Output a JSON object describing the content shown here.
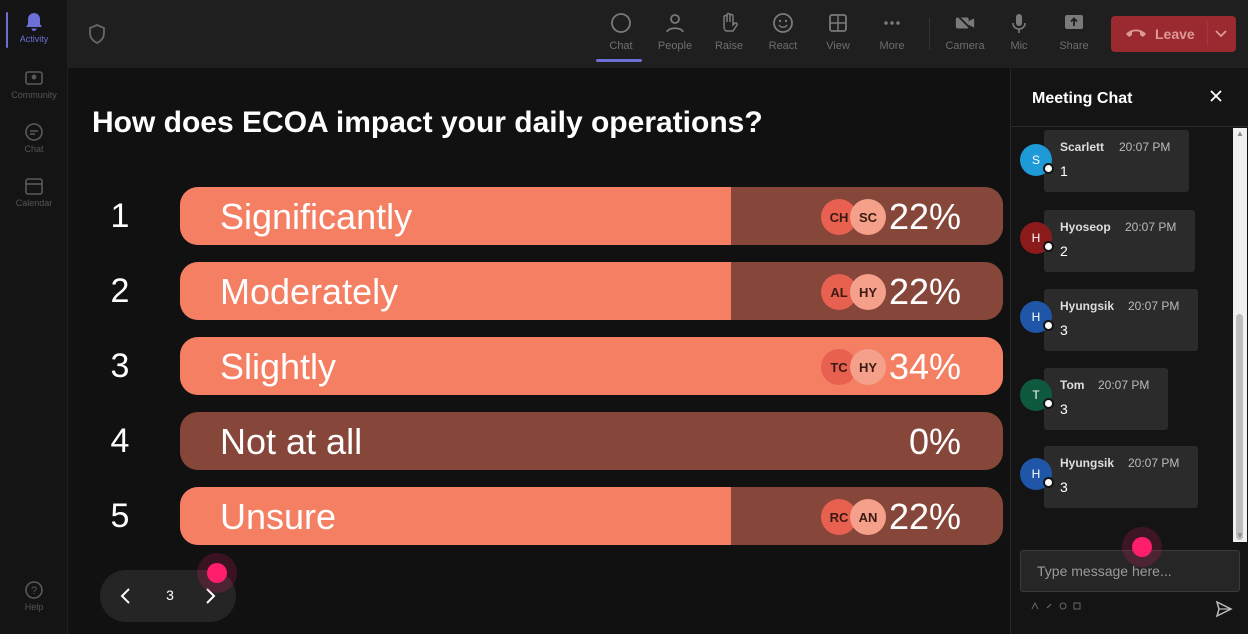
{
  "rail": {
    "items": [
      {
        "label": "Activity",
        "icon": "bell-icon",
        "active": true
      },
      {
        "label": "Community",
        "icon": "community-icon",
        "active": false
      },
      {
        "label": "Chat",
        "icon": "chat-icon",
        "active": false
      },
      {
        "label": "Calendar",
        "icon": "calendar-icon",
        "active": false
      }
    ],
    "help_label": "Help"
  },
  "toolbar": {
    "chat_label": "Chat",
    "people_label": "People",
    "raise_label": "Raise",
    "react_label": "React",
    "view_label": "View",
    "more_label": "More",
    "camera_label": "Camera",
    "mic_label": "Mic",
    "share_label": "Share",
    "leave_label": "Leave"
  },
  "poll": {
    "question": "How does ECOA impact your daily operations?",
    "page": "3",
    "options": [
      {
        "num": "1",
        "label": "Significantly",
        "percent": "22%",
        "fill": 0.67,
        "voters": [
          "CH",
          "SC"
        ]
      },
      {
        "num": "2",
        "label": "Moderately",
        "percent": "22%",
        "fill": 0.67,
        "voters": [
          "AL",
          "HY"
        ]
      },
      {
        "num": "3",
        "label": "Slightly",
        "percent": "34%",
        "fill": 1.0,
        "voters": [
          "TC",
          "HY"
        ]
      },
      {
        "num": "4",
        "label": "Not at all",
        "percent": "0%",
        "fill": 0,
        "voters": []
      },
      {
        "num": "5",
        "label": "Unsure",
        "percent": "22%",
        "fill": 0.67,
        "voters": [
          "RC",
          "AN"
        ]
      }
    ]
  },
  "chat": {
    "title": "Meeting Chat",
    "placeholder": "Type message here...",
    "messages": [
      {
        "initial": "S",
        "name": "Scarlett",
        "time": "20:07 PM",
        "text": "1",
        "color": "#1e9ad6"
      },
      {
        "initial": "H",
        "name": "Hyoseop",
        "time": "20:07 PM",
        "text": "2",
        "color": "#8b1a1a"
      },
      {
        "initial": "H",
        "name": "Hyungsik",
        "time": "20:07 PM",
        "text": "3",
        "color": "#1f56a8"
      },
      {
        "initial": "T",
        "name": "Tom",
        "time": "20:07 PM",
        "text": "3",
        "color": "#0f5a3e"
      },
      {
        "initial": "H",
        "name": "Hyungsik",
        "time": "20:07 PM",
        "text": "3",
        "color": "#1f56a8"
      }
    ]
  },
  "colors": {
    "fill": "#f47f63",
    "track": "#86473a",
    "leave": "#9b2a30",
    "accent": "#6b6fd6",
    "cursor": "#ff1d6e"
  }
}
